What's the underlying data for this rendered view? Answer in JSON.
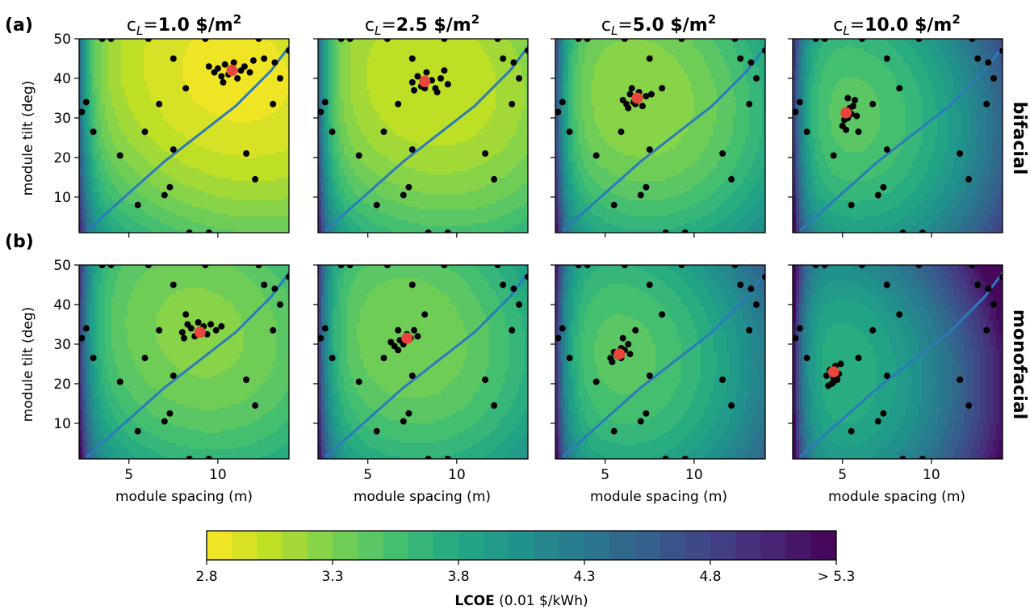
{
  "panel_labels": [
    "(a)",
    "(b)"
  ],
  "row_labels": [
    "bifacial",
    "monofacial"
  ],
  "column_titles": [
    {
      "prefix": "c",
      "sub": "L",
      "eq": "=",
      "value": "1.0 $/m",
      "sup": "2"
    },
    {
      "prefix": "c",
      "sub": "L",
      "eq": "=",
      "value": "2.5 $/m",
      "sup": "2"
    },
    {
      "prefix": "c",
      "sub": "L",
      "eq": "=",
      "value": "5.0 $/m",
      "sup": "2"
    },
    {
      "prefix": "c",
      "sub": "L",
      "eq": "=",
      "value": "10.0 $/m",
      "sup": "2"
    }
  ],
  "colorbar": {
    "label_bold": "LCOE",
    "label_rest": " (0.01 $/kWh)",
    "tick_labels": [
      "2.8",
      "3.3",
      "3.8",
      "4.3",
      "4.8",
      "> 5.3"
    ],
    "tick_values": [
      2.8,
      3.3,
      3.8,
      4.3,
      4.8,
      5.3
    ],
    "range": [
      2.8,
      5.3
    ],
    "levels": 25,
    "colormap": "viridis_r"
  },
  "chart_data": {
    "type": "heatmap",
    "xlabel": "module spacing (m)",
    "ylabel": "module tilt (deg)",
    "xlim": [
      2.2,
      14.0
    ],
    "ylim": [
      1,
      50
    ],
    "xticks": [
      5,
      10
    ],
    "yticks": [
      10,
      20,
      30,
      40,
      50
    ],
    "xtick_labels": [
      "5",
      "10"
    ],
    "ytick_labels": [
      "10",
      "20",
      "30",
      "40",
      "50"
    ],
    "grid": false,
    "scatter_color": "#000000",
    "optimum_color": "#e8453c",
    "line_color": "#2b7bba",
    "boundary_curve": {
      "x": [
        2.6,
        3.5,
        5,
        7,
        9,
        11,
        13,
        14
      ],
      "y": [
        1.5,
        5,
        11,
        19,
        26,
        33,
        42,
        48
      ]
    },
    "scatter_points": [
      [
        2.35,
        31.5
      ],
      [
        2.6,
        34
      ],
      [
        3.0,
        26.5
      ],
      [
        3.5,
        50
      ],
      [
        4.0,
        50
      ],
      [
        4.5,
        20.5
      ],
      [
        5.5,
        8
      ],
      [
        5.9,
        26.5
      ],
      [
        6.1,
        50
      ],
      [
        6.7,
        33.5
      ],
      [
        7.0,
        10.5
      ],
      [
        7.3,
        12.5
      ],
      [
        7.5,
        22
      ],
      [
        7.5,
        45
      ],
      [
        8.2,
        37.5
      ],
      [
        8.4,
        1
      ],
      [
        9.3,
        50
      ],
      [
        9.5,
        1
      ],
      [
        11.6,
        21
      ],
      [
        12.1,
        14.5
      ],
      [
        12.3,
        50
      ],
      [
        13.1,
        33.5
      ],
      [
        13.5,
        40
      ],
      [
        12.6,
        45
      ],
      [
        13.2,
        44
      ],
      [
        14.0,
        47
      ]
    ],
    "panels": [
      {
        "row": "bifacial",
        "cost": "1.0",
        "optimum": [
          10.8,
          42.0
        ],
        "min_lcoe": 2.85,
        "surface": {
          "cx": 11.0,
          "cy": 41.0,
          "a": 0.0056,
          "b": 0.00035,
          "c": 0.0004,
          "left": 1.2,
          "knee": 3.5
        },
        "cluster": [
          [
            9.8,
            41.5
          ],
          [
            10.0,
            42.5
          ],
          [
            10.2,
            40.5
          ],
          [
            10.4,
            43.5
          ],
          [
            10.6,
            41.0
          ],
          [
            10.9,
            44.0
          ],
          [
            11.1,
            40.0
          ],
          [
            11.3,
            42.0
          ],
          [
            11.5,
            43.0
          ],
          [
            11.8,
            41.5
          ],
          [
            12.0,
            44.5
          ],
          [
            10.3,
            39.0
          ],
          [
            9.5,
            43.0
          ]
        ]
      },
      {
        "row": "bifacial",
        "cost": "2.5",
        "optimum": [
          8.2,
          39.2
        ],
        "min_lcoe": 3.0,
        "surface": {
          "cx": 8.5,
          "cy": 39.0,
          "a": 0.0072,
          "b": 0.00038,
          "c": 0.0004,
          "left": 1.3,
          "knee": 3.4
        },
        "cluster": [
          [
            7.5,
            39.0
          ],
          [
            7.8,
            40.5
          ],
          [
            8.0,
            38.0
          ],
          [
            8.3,
            41.5
          ],
          [
            8.6,
            39.5
          ],
          [
            8.8,
            37.5
          ],
          [
            9.1,
            40.0
          ],
          [
            9.3,
            42.0
          ],
          [
            7.6,
            37.0
          ],
          [
            8.9,
            36.5
          ],
          [
            9.5,
            38.5
          ]
        ]
      },
      {
        "row": "bifacial",
        "cost": "5.0",
        "optimum": [
          6.8,
          35.0
        ],
        "min_lcoe": 3.2,
        "surface": {
          "cx": 6.8,
          "cy": 35.0,
          "a": 0.01,
          "b": 0.00045,
          "c": 0.0004,
          "left": 1.4,
          "knee": 3.3
        },
        "cluster": [
          [
            6.0,
            34.5
          ],
          [
            6.2,
            33.5
          ],
          [
            6.4,
            36.0
          ],
          [
            6.6,
            34.0
          ],
          [
            6.9,
            36.5
          ],
          [
            7.1,
            33.0
          ],
          [
            7.3,
            35.5
          ],
          [
            6.5,
            37.5
          ],
          [
            7.6,
            36.0
          ],
          [
            6.3,
            32.5
          ]
        ]
      },
      {
        "row": "bifacial",
        "cost": "10.0",
        "optimum": [
          5.2,
          31.3
        ],
        "min_lcoe": 3.45,
        "surface": {
          "cx": 5.3,
          "cy": 31.0,
          "a": 0.014,
          "b": 0.0005,
          "c": 0.0004,
          "left": 1.5,
          "knee": 3.2
        },
        "cluster": [
          [
            5.0,
            28.0
          ],
          [
            5.1,
            29.5
          ],
          [
            5.3,
            30.0
          ],
          [
            5.4,
            32.5
          ],
          [
            5.5,
            31.0
          ],
          [
            5.6,
            33.0
          ],
          [
            5.2,
            27.0
          ],
          [
            5.7,
            34.5
          ],
          [
            5.8,
            30.5
          ],
          [
            5.3,
            35.0
          ]
        ]
      },
      {
        "row": "monofacial",
        "cost": "1.0",
        "optimum": [
          9.0,
          33.0
        ],
        "min_lcoe": 3.25,
        "surface": {
          "cx": 9.0,
          "cy": 33.0,
          "a": 0.008,
          "b": 0.0004,
          "c": 0.0004,
          "left": 1.4,
          "knee": 3.3
        },
        "cluster": [
          [
            8.0,
            33.0
          ],
          [
            8.3,
            35.0
          ],
          [
            8.5,
            34.0
          ],
          [
            8.7,
            32.0
          ],
          [
            8.9,
            35.5
          ],
          [
            9.2,
            34.5
          ],
          [
            9.4,
            32.5
          ],
          [
            9.6,
            35.0
          ],
          [
            9.9,
            33.5
          ],
          [
            10.2,
            34.5
          ],
          [
            8.1,
            31.5
          ]
        ]
      },
      {
        "row": "monofacial",
        "cost": "2.5",
        "optimum": [
          7.2,
          31.5
        ],
        "min_lcoe": 3.3,
        "surface": {
          "cx": 7.3,
          "cy": 31.5,
          "a": 0.0095,
          "b": 0.00043,
          "c": 0.0004,
          "left": 1.4,
          "knee": 3.3
        },
        "cluster": [
          [
            6.5,
            29.5
          ],
          [
            6.8,
            31.0
          ],
          [
            7.0,
            30.0
          ],
          [
            7.2,
            32.5
          ],
          [
            7.4,
            31.5
          ],
          [
            7.6,
            33.5
          ],
          [
            7.8,
            32.0
          ],
          [
            6.7,
            28.5
          ],
          [
            6.3,
            30.5
          ]
        ]
      },
      {
        "row": "monofacial",
        "cost": "5.0",
        "optimum": [
          5.8,
          27.5
        ],
        "min_lcoe": 3.45,
        "surface": {
          "cx": 5.8,
          "cy": 27.5,
          "a": 0.012,
          "b": 0.00048,
          "c": 0.0004,
          "left": 1.5,
          "knee": 3.2
        },
        "cluster": [
          [
            5.3,
            26.5
          ],
          [
            5.5,
            28.0
          ],
          [
            5.7,
            27.0
          ],
          [
            5.9,
            29.0
          ],
          [
            6.1,
            28.5
          ],
          [
            6.3,
            30.0
          ],
          [
            5.4,
            25.5
          ],
          [
            6.0,
            31.5
          ],
          [
            6.4,
            27.5
          ]
        ]
      },
      {
        "row": "monofacial",
        "cost": "10.0",
        "optimum": [
          4.5,
          23.0
        ],
        "min_lcoe": 3.7,
        "surface": {
          "cx": 4.5,
          "cy": 23.0,
          "a": 0.016,
          "b": 0.00052,
          "c": 0.0004,
          "left": 1.6,
          "knee": 3.1
        },
        "cluster": [
          [
            4.1,
            22.0
          ],
          [
            4.3,
            23.5
          ],
          [
            4.5,
            21.5
          ],
          [
            4.6,
            24.5
          ],
          [
            4.8,
            22.5
          ],
          [
            4.4,
            20.0
          ],
          [
            4.9,
            25.0
          ],
          [
            4.2,
            19.5
          ],
          [
            4.7,
            21.0
          ]
        ]
      }
    ]
  }
}
